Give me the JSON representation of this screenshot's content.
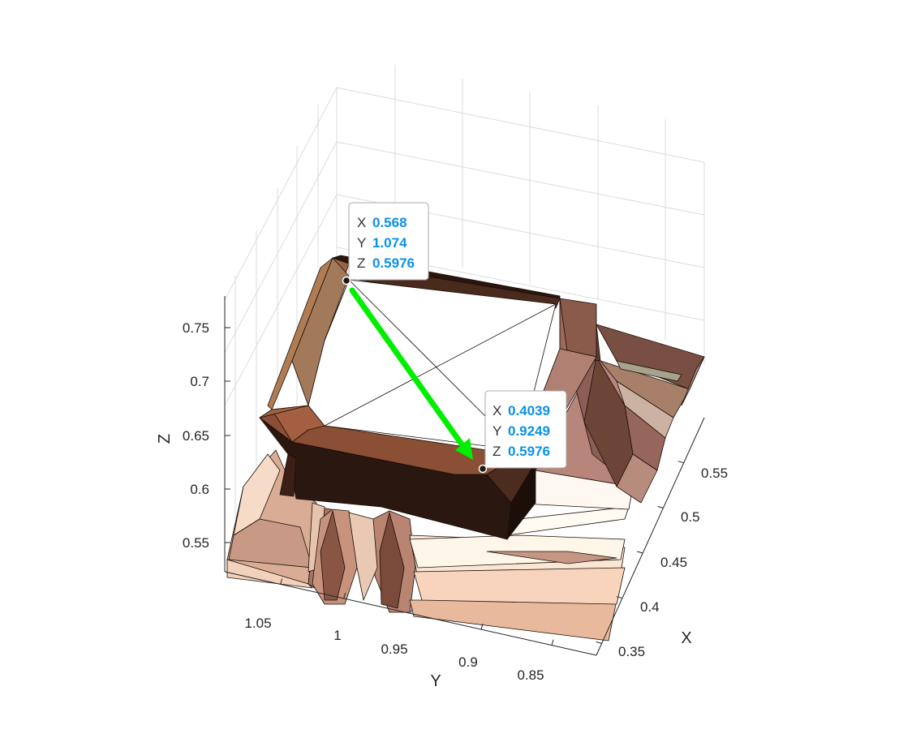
{
  "chart_data": {
    "type": "surface",
    "view": "3d",
    "grid": true,
    "xlabel": "X",
    "ylabel": "Y",
    "zlabel": "Z",
    "x_ticks": [
      "0.35",
      "0.4",
      "0.45",
      "0.5",
      "0.55"
    ],
    "y_ticks": [
      "1.05",
      "1",
      "0.95",
      "0.9",
      "0.85"
    ],
    "z_ticks": [
      "0.55",
      "0.6",
      "0.65",
      "0.7",
      "0.75"
    ],
    "datatips": [
      {
        "x": "0.568",
        "y": "1.074",
        "z": "0.5976"
      },
      {
        "x": "0.4039",
        "y": "0.9249",
        "z": "0.5976"
      }
    ],
    "arrow": {
      "from": 0,
      "to": 1,
      "color": "#00ee00"
    },
    "colors": {
      "dark_wall": "#2a160e",
      "mid_face": "#8a5a44",
      "light_face": "#f3d7c0",
      "grid": "#d9d9d9"
    }
  },
  "datatip_keys": {
    "x": "X",
    "y": "Y",
    "z": "Z"
  }
}
